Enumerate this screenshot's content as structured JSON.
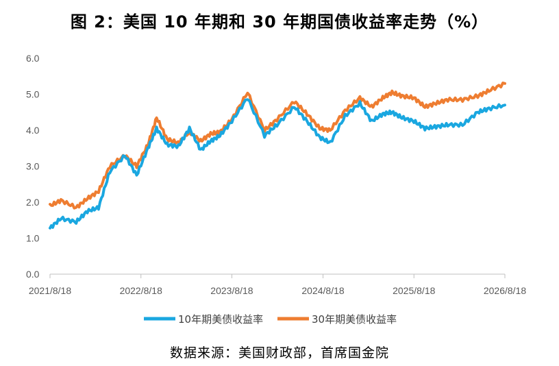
{
  "title": "图 2：美国 10 年期和 30 年期国债收益率走势（%）",
  "source": "数据来源：美国财政部，首席国金院",
  "colors": {
    "series_10y": "#1aa7e0",
    "series_30y": "#ee7d31",
    "axis": "#bfbfbf",
    "tick_text": "#595959"
  },
  "chart_data": {
    "type": "line",
    "title": "图 2：美国 10 年期和 30 年期国债收益率走势（%）",
    "xlabel": "",
    "ylabel": "",
    "ylim": [
      0,
      6
    ],
    "yticks": [
      "0.0",
      "1.0",
      "2.0",
      "3.0",
      "4.0",
      "5.0",
      "6.0"
    ],
    "xticks": [
      "2021/8/18",
      "2022/8/18",
      "2023/8/18",
      "2024/8/18",
      "2025/8/18",
      "2026/8/18"
    ],
    "xlim": [
      "2021-08-18",
      "2026-08-18"
    ],
    "grid": false,
    "legend": "bottom",
    "x": [
      "2021-08-18",
      "2021-10-01",
      "2021-12-01",
      "2022-01-15",
      "2022-03-01",
      "2022-04-15",
      "2022-06-15",
      "2022-08-01",
      "2022-09-15",
      "2022-10-20",
      "2022-12-01",
      "2023-01-15",
      "2023-03-01",
      "2023-04-15",
      "2023-05-25",
      "2023-07-01",
      "2023-08-18",
      "2023-10-20",
      "2023-12-27",
      "2024-02-15",
      "2024-04-25",
      "2024-06-15",
      "2024-08-05",
      "2024-09-16",
      "2024-11-15",
      "2025-01-13",
      "2025-03-01",
      "2025-04-15",
      "2025-05-22",
      "2025-07-01",
      "2025-08-18",
      "2025-10-01",
      "2025-11-15",
      "2026-01-01",
      "2026-03-01",
      "2026-05-01",
      "2026-06-15",
      "2026-08-18"
    ],
    "series": [
      {
        "name": "10年期美债收益率",
        "values": [
          1.28,
          1.55,
          1.45,
          1.75,
          1.85,
          2.85,
          3.3,
          2.75,
          3.5,
          4.05,
          3.6,
          3.55,
          4.05,
          3.45,
          3.7,
          3.85,
          4.25,
          4.9,
          3.85,
          4.15,
          4.65,
          4.25,
          3.8,
          3.65,
          4.4,
          4.75,
          4.25,
          4.45,
          4.5,
          4.35,
          4.25,
          4.05,
          4.1,
          4.15,
          4.15,
          4.5,
          4.6,
          4.7
        ]
      },
      {
        "name": "30年期美债收益率",
        "values": [
          1.9,
          2.05,
          1.85,
          2.1,
          2.3,
          3.0,
          3.3,
          3.0,
          3.6,
          4.35,
          3.75,
          3.65,
          3.95,
          3.7,
          3.9,
          3.95,
          4.3,
          5.05,
          4.0,
          4.3,
          4.8,
          4.45,
          4.05,
          4.0,
          4.55,
          4.9,
          4.65,
          4.9,
          5.05,
          4.95,
          4.9,
          4.65,
          4.75,
          4.85,
          4.85,
          4.95,
          5.1,
          5.3
        ]
      }
    ]
  }
}
